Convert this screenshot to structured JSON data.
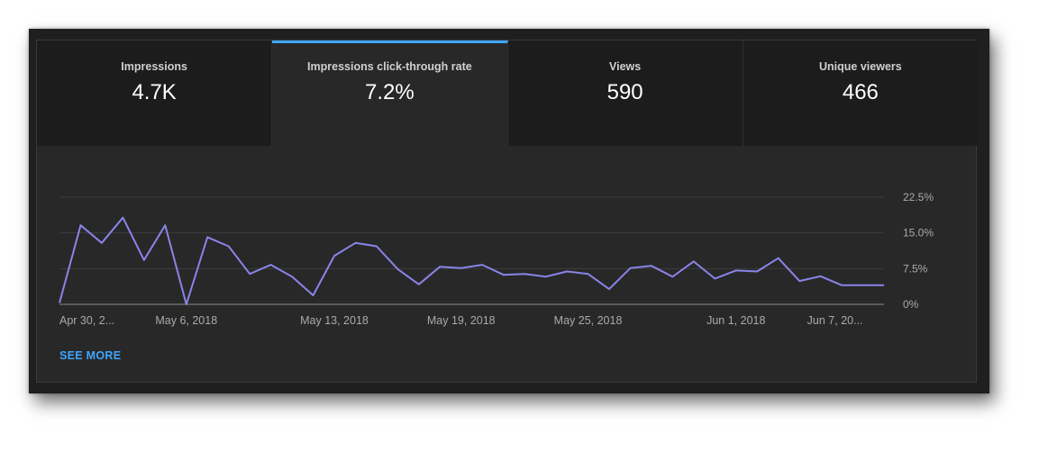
{
  "tabs": [
    {
      "label": "Impressions",
      "value": "4.7K"
    },
    {
      "label": "Impressions click-through rate",
      "value": "7.2%"
    },
    {
      "label": "Views",
      "value": "590"
    },
    {
      "label": "Unique viewers",
      "value": "466"
    }
  ],
  "see_more": "SEE MORE",
  "colors": {
    "line": "#8a84e8",
    "accent": "#3ea6ff",
    "grid": "#3c3c3c"
  },
  "chart_data": {
    "type": "line",
    "x": [
      "2018-04-30",
      "2018-05-01",
      "2018-05-02",
      "2018-05-03",
      "2018-05-04",
      "2018-05-05",
      "2018-05-06",
      "2018-05-07",
      "2018-05-08",
      "2018-05-09",
      "2018-05-10",
      "2018-05-11",
      "2018-05-12",
      "2018-05-13",
      "2018-05-14",
      "2018-05-15",
      "2018-05-16",
      "2018-05-17",
      "2018-05-18",
      "2018-05-19",
      "2018-05-20",
      "2018-05-21",
      "2018-05-22",
      "2018-05-23",
      "2018-05-24",
      "2018-05-25",
      "2018-05-26",
      "2018-05-27",
      "2018-05-28",
      "2018-05-29",
      "2018-05-30",
      "2018-05-31",
      "2018-06-01",
      "2018-06-02",
      "2018-06-03",
      "2018-06-04",
      "2018-06-05",
      "2018-06-06",
      "2018-06-07",
      "2018-06-08"
    ],
    "series": [
      {
        "values": [
          0.3,
          16.6,
          12.9,
          18.2,
          9.3,
          16.6,
          0,
          14.1,
          12.2,
          6.4,
          8.3,
          5.8,
          1.9,
          10.2,
          12.9,
          12.2,
          7.4,
          4.2,
          7.9,
          7.6,
          8.3,
          6.2,
          6.4,
          5.8,
          6.9,
          6.4,
          3.2,
          7.6,
          8.1,
          5.8,
          9.0,
          5.4,
          7.1,
          6.9,
          9.7,
          4.9,
          5.9,
          4.0,
          4.0,
          4.0
        ]
      }
    ],
    "x_tick_labels": [
      "Apr 30, 2...",
      "May 6, 2018",
      "May 13, 2018",
      "May 19, 2018",
      "May 25, 2018",
      "Jun 1, 2018",
      "Jun 7, 20..."
    ],
    "x_tick_index": [
      0,
      6,
      13,
      19,
      25,
      32,
      38
    ],
    "y_ticks": [
      0,
      7.5,
      15.0,
      22.5
    ],
    "y_tick_labels": [
      "0%",
      "7.5%",
      "15.0%",
      "22.5%"
    ],
    "ylim": [
      0,
      22.5
    ],
    "grid": true,
    "y_axis_side": "right"
  }
}
